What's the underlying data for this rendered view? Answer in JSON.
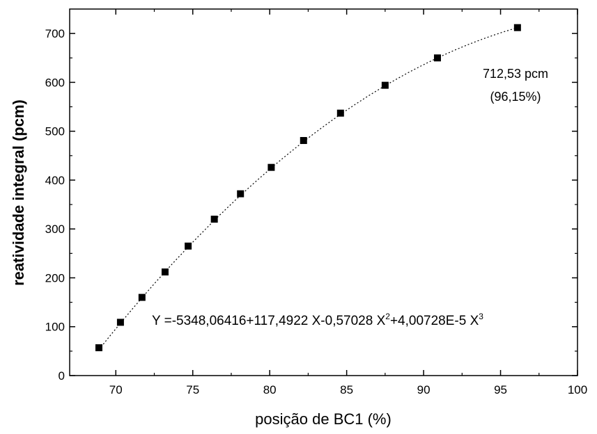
{
  "chart_data": {
    "type": "scatter",
    "xlabel": "posição de BC1 (%)",
    "ylabel": "reatividade integral (pcm)",
    "xlim": [
      67,
      100
    ],
    "ylim": [
      0,
      750
    ],
    "x_ticks": [
      70,
      75,
      80,
      85,
      90,
      95,
      100
    ],
    "y_ticks": [
      0,
      100,
      200,
      300,
      400,
      500,
      600,
      700
    ],
    "x_tick_labels": [
      "70",
      "75",
      "80",
      "85",
      "90",
      "95",
      "100"
    ],
    "y_tick_labels": [
      "0",
      "100",
      "200",
      "300",
      "400",
      "500",
      "600",
      "700"
    ],
    "grid": false,
    "series": [
      {
        "marker": "square",
        "color": "#000000",
        "points": [
          {
            "x": 68.9,
            "y": 57
          },
          {
            "x": 70.3,
            "y": 109
          },
          {
            "x": 71.7,
            "y": 160
          },
          {
            "x": 73.2,
            "y": 212
          },
          {
            "x": 74.7,
            "y": 265
          },
          {
            "x": 76.4,
            "y": 320
          },
          {
            "x": 78.1,
            "y": 372
          },
          {
            "x": 80.1,
            "y": 426
          },
          {
            "x": 82.2,
            "y": 481
          },
          {
            "x": 84.6,
            "y": 537
          },
          {
            "x": 87.5,
            "y": 594
          },
          {
            "x": 90.9,
            "y": 650
          },
          {
            "x": 96.1,
            "y": 712
          }
        ]
      }
    ],
    "fit": {
      "style": "dotted",
      "coefficients": [
        -5348.06416,
        117.4922,
        -0.57028,
        4.00728e-05
      ],
      "x_range": [
        68.9,
        96.15
      ],
      "equation": {
        "prefix": "Y =-5348,06416+117,4922 X-0,57028 X",
        "exp2": "2",
        "mid": "+4,00728E-5 X",
        "exp3": "3"
      }
    },
    "annotations": [
      "712,53 pcm",
      "(96,15%)"
    ]
  }
}
